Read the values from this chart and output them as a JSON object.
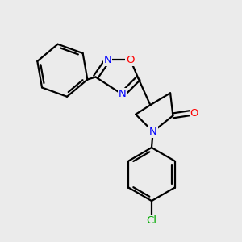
{
  "bg_color": "#ebebeb",
  "bond_color": "#000000",
  "bond_width": 1.6,
  "atom_colors": {
    "N": "#0000ff",
    "O": "#ff0000",
    "Cl": "#00aa00"
  },
  "font_size_atom": 9.5,
  "fig_bg": "#ebebeb"
}
